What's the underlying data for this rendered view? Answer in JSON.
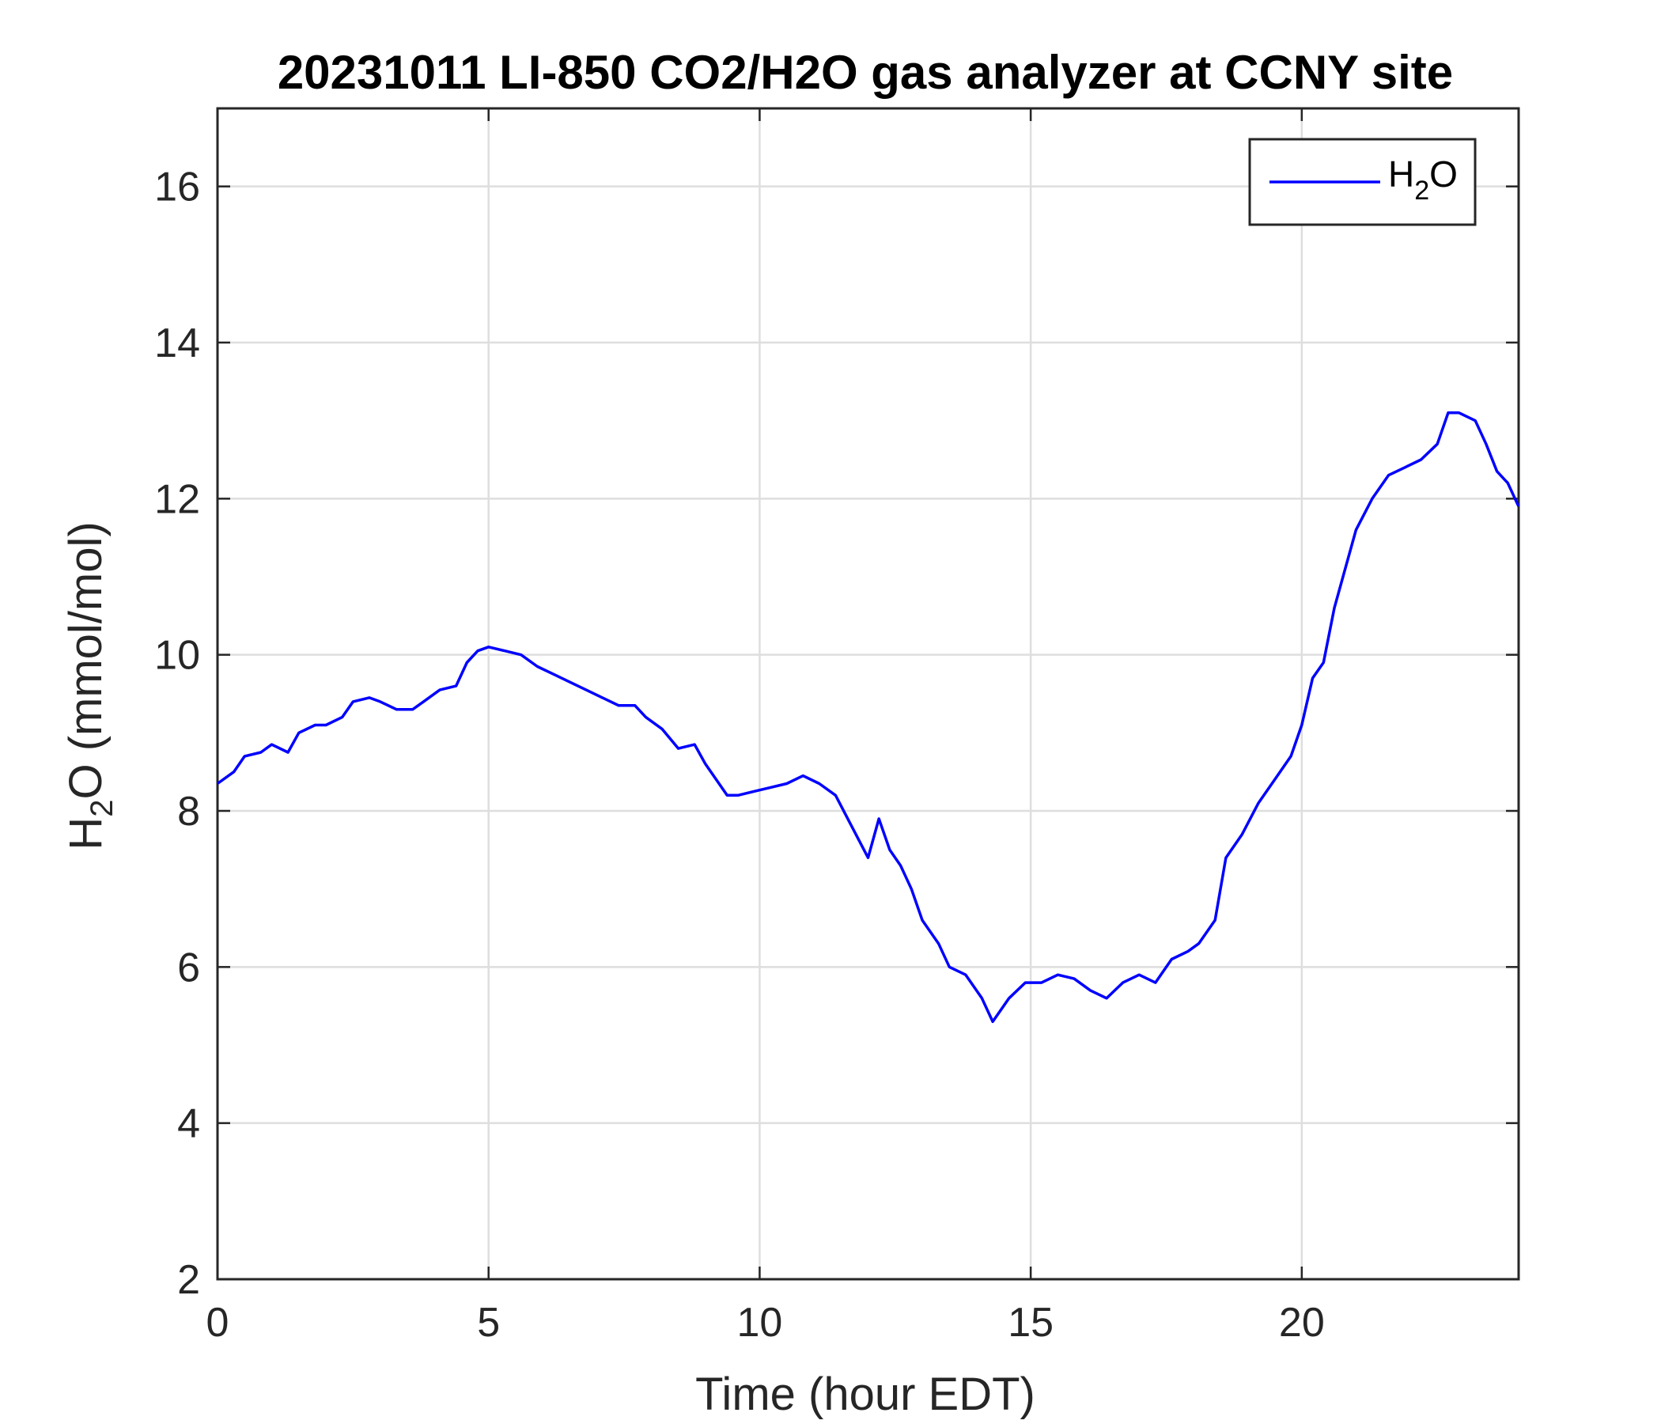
{
  "chart_data": {
    "type": "line",
    "title": "20231011 LI-850 CO2/H2O gas analyzer at CCNY site",
    "xlabel": "Time (hour EDT)",
    "ylabel_main": "H",
    "ylabel_sub": "2",
    "ylabel_rest": "O (mmol/mol)",
    "xlim": [
      0,
      24
    ],
    "ylim": [
      2,
      17
    ],
    "xticks": [
      0,
      5,
      10,
      15,
      20
    ],
    "yticks": [
      2,
      4,
      6,
      8,
      10,
      12,
      14,
      16
    ],
    "grid": true,
    "legend_position": "top-right",
    "series": [
      {
        "legend_main": "H",
        "legend_sub": "2",
        "legend_rest": "O",
        "color": "#0000ff",
        "x": [
          0,
          0.3,
          0.5,
          0.8,
          1.0,
          1.3,
          1.5,
          1.8,
          2.0,
          2.3,
          2.5,
          2.8,
          3.0,
          3.3,
          3.6,
          3.8,
          4.1,
          4.4,
          4.6,
          4.8,
          5.0,
          5.3,
          5.6,
          5.9,
          6.2,
          6.5,
          6.8,
          7.1,
          7.4,
          7.7,
          7.9,
          8.2,
          8.5,
          8.8,
          9.0,
          9.2,
          9.4,
          9.6,
          9.9,
          10.2,
          10.5,
          10.8,
          11.1,
          11.4,
          11.7,
          12.0,
          12.2,
          12.4,
          12.6,
          12.8,
          13.0,
          13.3,
          13.5,
          13.8,
          14.1,
          14.3,
          14.6,
          14.9,
          15.2,
          15.5,
          15.8,
          16.1,
          16.4,
          16.7,
          17.0,
          17.3,
          17.6,
          17.9,
          18.1,
          18.4,
          18.6,
          18.9,
          19.2,
          19.5,
          19.8,
          20.0,
          20.2,
          20.4,
          20.6,
          20.8,
          21.0,
          21.3,
          21.6,
          21.9,
          22.2,
          22.5,
          22.7,
          22.9,
          23.2,
          23.4,
          23.6,
          23.8,
          24.0
        ],
        "values": [
          8.35,
          8.5,
          8.7,
          8.75,
          8.85,
          8.75,
          9.0,
          9.1,
          9.1,
          9.2,
          9.4,
          9.45,
          9.4,
          9.3,
          9.3,
          9.4,
          9.55,
          9.6,
          9.9,
          10.05,
          10.1,
          10.05,
          10.0,
          9.85,
          9.75,
          9.65,
          9.55,
          9.45,
          9.35,
          9.35,
          9.2,
          9.05,
          8.8,
          8.85,
          8.6,
          8.4,
          8.2,
          8.2,
          8.25,
          8.3,
          8.35,
          8.45,
          8.35,
          8.2,
          7.8,
          7.4,
          7.9,
          7.5,
          7.3,
          7.0,
          6.6,
          6.3,
          6.0,
          5.9,
          5.6,
          5.3,
          5.6,
          5.8,
          5.8,
          5.9,
          5.85,
          5.7,
          5.6,
          5.8,
          5.9,
          5.8,
          6.1,
          6.2,
          6.3,
          6.6,
          7.4,
          7.7,
          8.1,
          8.4,
          8.7,
          9.1,
          9.7,
          9.9,
          10.6,
          11.1,
          11.6,
          12.0,
          12.3,
          12.4,
          12.5,
          12.7,
          13.1,
          13.1,
          13.0,
          12.7,
          12.35,
          12.2,
          11.9
        ]
      }
    ]
  }
}
